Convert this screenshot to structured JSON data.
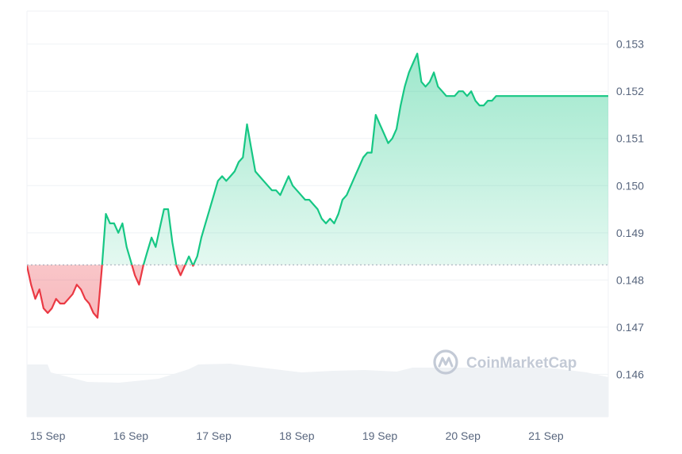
{
  "chart_data": {
    "type": "line",
    "baseline": 0.14832,
    "ylim": [
      0.1451,
      0.1537
    ],
    "xlim": [
      0,
      7
    ],
    "grid": true,
    "y_ticks": [
      0.146,
      0.147,
      0.148,
      0.149,
      0.15,
      0.151,
      0.152,
      0.153
    ],
    "y_tick_labels": [
      "0.146",
      "0.147",
      "0.148",
      "0.149",
      "0.150",
      "0.151",
      "0.152",
      "0.153"
    ],
    "x_ticks": [
      0.25,
      1.25,
      2.25,
      3.25,
      4.25,
      5.25,
      6.25
    ],
    "x_tick_labels": [
      "15 Sep",
      "16 Sep",
      "17 Sep",
      "18 Sep",
      "19 Sep",
      "20 Sep",
      "21 Sep"
    ],
    "x": [
      0.0,
      0.05,
      0.1,
      0.15,
      0.2,
      0.25,
      0.3,
      0.35,
      0.4,
      0.45,
      0.5,
      0.55,
      0.6,
      0.65,
      0.7,
      0.75,
      0.8,
      0.85,
      0.9,
      0.95,
      1.0,
      1.05,
      1.1,
      1.15,
      1.2,
      1.25,
      1.3,
      1.35,
      1.4,
      1.45,
      1.5,
      1.55,
      1.6,
      1.65,
      1.7,
      1.75,
      1.8,
      1.85,
      1.9,
      1.95,
      2.0,
      2.05,
      2.1,
      2.15,
      2.2,
      2.25,
      2.3,
      2.35,
      2.4,
      2.45,
      2.5,
      2.55,
      2.6,
      2.65,
      2.7,
      2.75,
      2.8,
      2.85,
      2.9,
      2.95,
      3.0,
      3.05,
      3.1,
      3.15,
      3.2,
      3.25,
      3.3,
      3.35,
      3.4,
      3.45,
      3.5,
      3.55,
      3.6,
      3.65,
      3.7,
      3.75,
      3.8,
      3.85,
      3.9,
      3.95,
      4.0,
      4.05,
      4.1,
      4.15,
      4.2,
      4.25,
      4.3,
      4.35,
      4.4,
      4.45,
      4.5,
      4.55,
      4.6,
      4.65,
      4.7,
      4.75,
      4.8,
      4.85,
      4.9,
      4.95,
      5.0,
      5.05,
      5.1,
      5.15,
      5.2,
      5.25,
      5.3,
      5.35,
      5.4,
      5.45,
      5.5,
      5.55,
      5.6,
      5.65,
      5.7,
      5.75,
      5.8,
      5.85,
      5.9,
      5.95,
      6.0,
      6.05,
      6.1,
      6.15,
      6.2,
      6.25,
      6.3,
      6.35,
      6.4,
      6.45,
      6.5,
      6.55,
      6.6,
      6.65,
      6.7,
      6.75,
      6.8,
      6.85,
      6.9,
      6.95,
      7.0
    ],
    "values": [
      0.1483,
      0.1479,
      0.1476,
      0.1478,
      0.1474,
      0.1473,
      0.1474,
      0.1476,
      0.1475,
      0.1475,
      0.1476,
      0.1477,
      0.1479,
      0.1478,
      0.1476,
      0.1475,
      0.1473,
      0.1472,
      0.1482,
      0.1494,
      0.1492,
      0.1492,
      0.149,
      0.1492,
      0.1487,
      0.1484,
      0.1481,
      0.1479,
      0.1483,
      0.1486,
      0.1489,
      0.1487,
      0.1491,
      0.1495,
      0.1495,
      0.1488,
      0.1483,
      0.1481,
      0.1483,
      0.1485,
      0.1483,
      0.1485,
      0.1489,
      0.1492,
      0.1495,
      0.1498,
      0.1501,
      0.1502,
      0.1501,
      0.1502,
      0.1503,
      0.1505,
      0.1506,
      0.1513,
      0.1508,
      0.1503,
      0.1502,
      0.1501,
      0.15,
      0.1499,
      0.1499,
      0.1498,
      0.15,
      0.1502,
      0.15,
      0.1499,
      0.1498,
      0.1497,
      0.1497,
      0.1496,
      0.1495,
      0.1493,
      0.1492,
      0.1493,
      0.1492,
      0.1494,
      0.1497,
      0.1498,
      0.15,
      0.1502,
      0.1504,
      0.1506,
      0.1507,
      0.1507,
      0.1515,
      0.1513,
      0.1511,
      0.1509,
      0.151,
      0.1512,
      0.1517,
      0.1521,
      0.1524,
      0.1526,
      0.1528,
      0.1522,
      0.1521,
      0.1522,
      0.1524,
      0.1521,
      0.152,
      0.1519,
      0.1519,
      0.1519,
      0.152,
      0.152,
      0.1519,
      0.152,
      0.1518,
      0.1517,
      0.1517,
      0.1518,
      0.1518,
      0.1519,
      0.1519,
      0.1519,
      0.1519,
      0.1519,
      0.1519,
      0.1519,
      0.1519,
      0.1519,
      0.1519,
      0.1519,
      0.1519,
      0.1519,
      0.1519,
      0.1519,
      0.1519,
      0.1519,
      0.1519,
      0.1519,
      0.1519,
      0.1519,
      0.1519,
      0.1519,
      0.1519,
      0.1519,
      0.1519,
      0.1519,
      0.1519
    ],
    "up_color": "#16c784",
    "down_color": "#ea3943",
    "volume_color": "#eff2f5"
  },
  "watermark": {
    "text": "CoinMarketCap",
    "icon": "coinmarketcap-logo-icon",
    "color": "#c3cad6"
  }
}
